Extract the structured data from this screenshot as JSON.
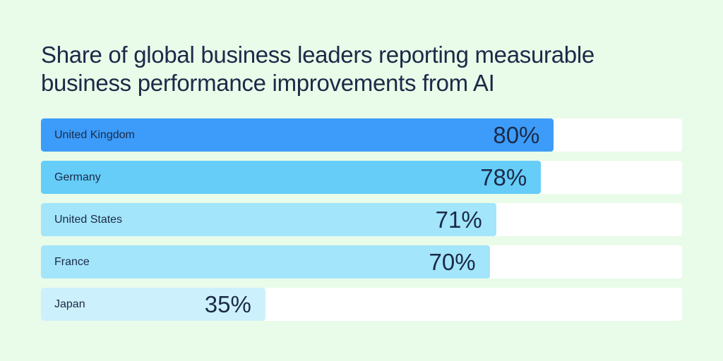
{
  "chart_data": {
    "type": "bar",
    "orientation": "horizontal",
    "title": "Share of global business leaders reporting measurable business performance improvements from AI",
    "categories": [
      "United Kingdom",
      "Germany",
      "United States",
      "France",
      "Japan"
    ],
    "values": [
      80,
      78,
      71,
      70,
      35
    ],
    "value_labels": [
      "80%",
      "78%",
      "71%",
      "70%",
      "35%"
    ],
    "xlim": [
      0,
      100
    ],
    "unit": "%",
    "grid": false,
    "legend": "none",
    "bar_colors": [
      "#3d9cf9",
      "#66cdf9",
      "#a3e5fb",
      "#a3e5fb",
      "#cdf1fc"
    ],
    "track_color": "#ffffff",
    "background_color": "#e9fbe9",
    "text_color": "#1b2a47"
  }
}
